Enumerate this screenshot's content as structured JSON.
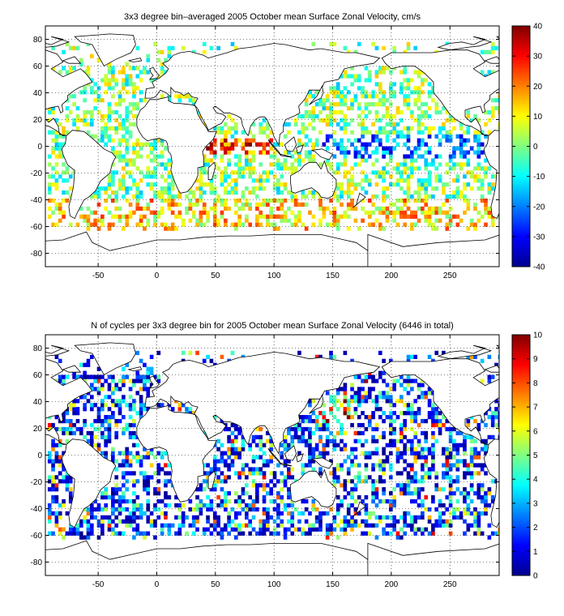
{
  "chart_data": [
    {
      "type": "heatmap",
      "title": "3x3 degree bin–averaged 2005 October mean Surface Zonal Velocity, cm/s",
      "xlabel": "",
      "ylabel": "",
      "xlim": [
        -95,
        292
      ],
      "ylim": [
        -90,
        90
      ],
      "x_ticks": [
        "-50",
        "0",
        "50",
        "100",
        "150",
        "200",
        "250"
      ],
      "y_ticks": [
        "80",
        "60",
        "40",
        "20",
        "0",
        "-20",
        "-40",
        "-60",
        "-80"
      ],
      "grid": true,
      "colorbar": {
        "min": -40,
        "max": 40,
        "ticks": [
          "40",
          "30",
          "20",
          "10",
          "0",
          "-10",
          "-20",
          "-30",
          "-40"
        ],
        "colormap": "jet"
      },
      "bin_size_deg": 3
    },
    {
      "type": "heatmap",
      "title": "N of cycles per 3x3 degree bin for 2005 October mean Surface Zonal Velocity (6446 in total)",
      "xlabel": "",
      "ylabel": "",
      "xlim": [
        -95,
        292
      ],
      "ylim": [
        -90,
        90
      ],
      "x_ticks": [
        "-50",
        "0",
        "50",
        "100",
        "150",
        "200",
        "250"
      ],
      "y_ticks": [
        "80",
        "60",
        "40",
        "20",
        "0",
        "-20",
        "-40",
        "-60",
        "-80"
      ],
      "grid": true,
      "colorbar": {
        "min": 0,
        "max": 10,
        "ticks": [
          "10",
          "9",
          "8",
          "7",
          "6",
          "5",
          "4",
          "3",
          "2",
          "1",
          "0"
        ],
        "colormap": "jet"
      },
      "bin_size_deg": 3
    }
  ]
}
